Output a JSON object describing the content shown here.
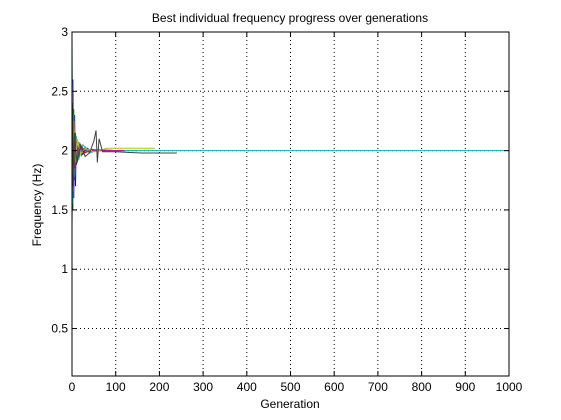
{
  "chart_data": {
    "type": "line",
    "title": "Best individual frequency progress over generations",
    "xlabel": "Generation",
    "ylabel": "Frequency (Hz)",
    "xlim": [
      0,
      1000
    ],
    "ylim": [
      0.1,
      3
    ],
    "xticks": [
      0,
      100,
      200,
      300,
      400,
      500,
      600,
      700,
      800,
      900,
      1000
    ],
    "yticks": [
      0.5,
      1,
      1.5,
      2,
      2.5,
      3
    ],
    "grid": true,
    "legend": "none",
    "series": [
      {
        "color": "#0000ff",
        "x": [
          0,
          2,
          4,
          6,
          8,
          10,
          14,
          18,
          25,
          35,
          45,
          60,
          90
        ],
        "y": [
          1.45,
          2.6,
          1.6,
          2.3,
          1.7,
          2.12,
          1.92,
          2.05,
          1.97,
          2.02,
          1.99,
          2.0,
          2.0
        ]
      },
      {
        "color": "#008000",
        "x": [
          0,
          2,
          4,
          6,
          8,
          12,
          16,
          22,
          30,
          40,
          60,
          100,
          150
        ],
        "y": [
          2.7,
          1.5,
          2.35,
          1.75,
          2.15,
          1.9,
          2.07,
          1.96,
          2.03,
          1.98,
          2.01,
          2.0,
          2.0
        ]
      },
      {
        "color": "#ff0000",
        "x": [
          0,
          1,
          3,
          5,
          7,
          10,
          15,
          20,
          30,
          45,
          70,
          110
        ],
        "y": [
          1.35,
          2.55,
          1.65,
          2.25,
          1.8,
          2.1,
          1.93,
          2.04,
          1.98,
          2.01,
          2.0,
          2.0
        ]
      },
      {
        "color": "#00bfbf",
        "x": [
          0,
          2,
          4,
          6,
          10,
          15,
          25,
          40,
          60,
          100,
          200,
          1000
        ],
        "y": [
          2.95,
          1.55,
          2.3,
          1.78,
          2.12,
          1.92,
          2.05,
          1.98,
          2.01,
          2.0,
          2.0,
          2.0
        ]
      },
      {
        "color": "#bf00bf",
        "x": [
          0,
          2,
          4,
          7,
          10,
          15,
          22,
          35,
          50,
          80,
          120
        ],
        "y": [
          2.2,
          1.7,
          2.2,
          1.85,
          2.08,
          1.95,
          2.03,
          1.99,
          2.0,
          2.0,
          2.0
        ]
      },
      {
        "color": "#bfbf00",
        "x": [
          0,
          2,
          4,
          8,
          12,
          20,
          30,
          50,
          80,
          120,
          190
        ],
        "y": [
          2.6,
          1.8,
          2.25,
          1.9,
          2.1,
          1.97,
          2.02,
          1.99,
          2.02,
          2.02,
          2.02
        ]
      },
      {
        "color": "#404040",
        "x": [
          0,
          2,
          4,
          6,
          10,
          20,
          30,
          40,
          50,
          55,
          58,
          62,
          70,
          100,
          160,
          240
        ],
        "y": [
          1.4,
          2.4,
          1.7,
          2.15,
          1.88,
          2.05,
          1.95,
          1.98,
          2.08,
          2.17,
          1.9,
          2.1,
          1.99,
          1.99,
          1.98,
          1.98
        ]
      }
    ]
  }
}
